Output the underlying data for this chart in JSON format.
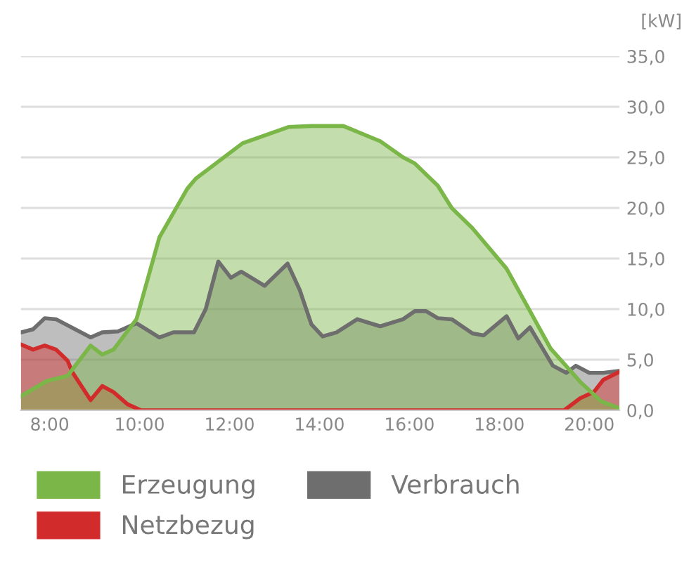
{
  "chart_data": {
    "type": "area",
    "ylabel": "[kW]",
    "xlim": [
      7.36,
      20.67
    ],
    "ylim": [
      0,
      35
    ],
    "xticks": [
      {
        "value": 8,
        "label": "8:00"
      },
      {
        "value": 10,
        "label": "10:00"
      },
      {
        "value": 12,
        "label": "12:00"
      },
      {
        "value": 14,
        "label": "14:00"
      },
      {
        "value": 16,
        "label": "16:00"
      },
      {
        "value": 18,
        "label": "18:00"
      },
      {
        "value": 20,
        "label": "20:00"
      }
    ],
    "yticks": [
      {
        "value": 0,
        "label": "0,0"
      },
      {
        "value": 5,
        "label": "5,0"
      },
      {
        "value": 10,
        "label": "10,0"
      },
      {
        "value": 15,
        "label": "15,0"
      },
      {
        "value": 20,
        "label": "20,0"
      },
      {
        "value": 25,
        "label": "25,0"
      },
      {
        "value": 30,
        "label": "30,0"
      },
      {
        "value": 35,
        "label": "35,0"
      }
    ],
    "grid": "y",
    "legend": "bottom",
    "series": [
      {
        "name": "Verbrauch",
        "color": "#6e6e6e",
        "x": [
          7.36,
          7.63,
          7.89,
          8.14,
          8.91,
          9.17,
          9.52,
          9.93,
          10.44,
          10.75,
          11.21,
          11.47,
          11.75,
          12.03,
          12.26,
          12.78,
          13.29,
          13.56,
          13.82,
          14.07,
          14.38,
          14.84,
          15.35,
          15.86,
          16.12,
          16.37,
          16.63,
          16.94,
          17.4,
          17.65,
          18.16,
          18.42,
          18.68,
          19.19,
          19.49,
          19.7,
          20.0,
          20.31,
          20.67
        ],
        "values": [
          7.7,
          8.0,
          9.1,
          9.0,
          7.2,
          7.7,
          7.8,
          8.6,
          7.2,
          7.7,
          7.7,
          10.0,
          14.7,
          13.1,
          13.7,
          12.3,
          14.5,
          11.9,
          8.5,
          7.3,
          7.7,
          9.0,
          8.3,
          9.0,
          9.8,
          9.8,
          9.1,
          9.0,
          7.6,
          7.4,
          9.3,
          7.1,
          8.2,
          4.4,
          3.7,
          4.4,
          3.7,
          3.7,
          3.9
        ]
      },
      {
        "name": "Netzbezug",
        "color": "#d22b2b",
        "x": [
          7.36,
          7.63,
          7.89,
          8.14,
          8.4,
          8.5,
          8.91,
          9.17,
          9.42,
          9.73,
          10.03,
          19.44,
          19.8,
          20.1,
          20.31,
          20.67
        ],
        "values": [
          6.5,
          6.0,
          6.4,
          6.0,
          4.9,
          3.8,
          1.0,
          2.4,
          1.8,
          0.6,
          0.0,
          0.0,
          1.2,
          1.8,
          3.0,
          3.8
        ]
      },
      {
        "name": "Erzeugung",
        "color": "#7ab648",
        "x": [
          7.36,
          7.94,
          8.4,
          8.91,
          9.17,
          9.42,
          9.93,
          10.44,
          11.06,
          11.25,
          12.29,
          13.31,
          13.82,
          14.53,
          15.35,
          15.86,
          16.12,
          16.63,
          16.94,
          17.4,
          18.16,
          19.14,
          19.8,
          20.26,
          20.67
        ],
        "values": [
          1.4,
          2.9,
          3.4,
          6.4,
          5.5,
          6.0,
          9.0,
          17.1,
          21.9,
          22.9,
          26.4,
          28.0,
          28.1,
          28.1,
          26.6,
          25.0,
          24.4,
          22.2,
          20.0,
          18.0,
          14.0,
          6.1,
          2.8,
          0.9,
          0.2
        ]
      }
    ]
  }
}
